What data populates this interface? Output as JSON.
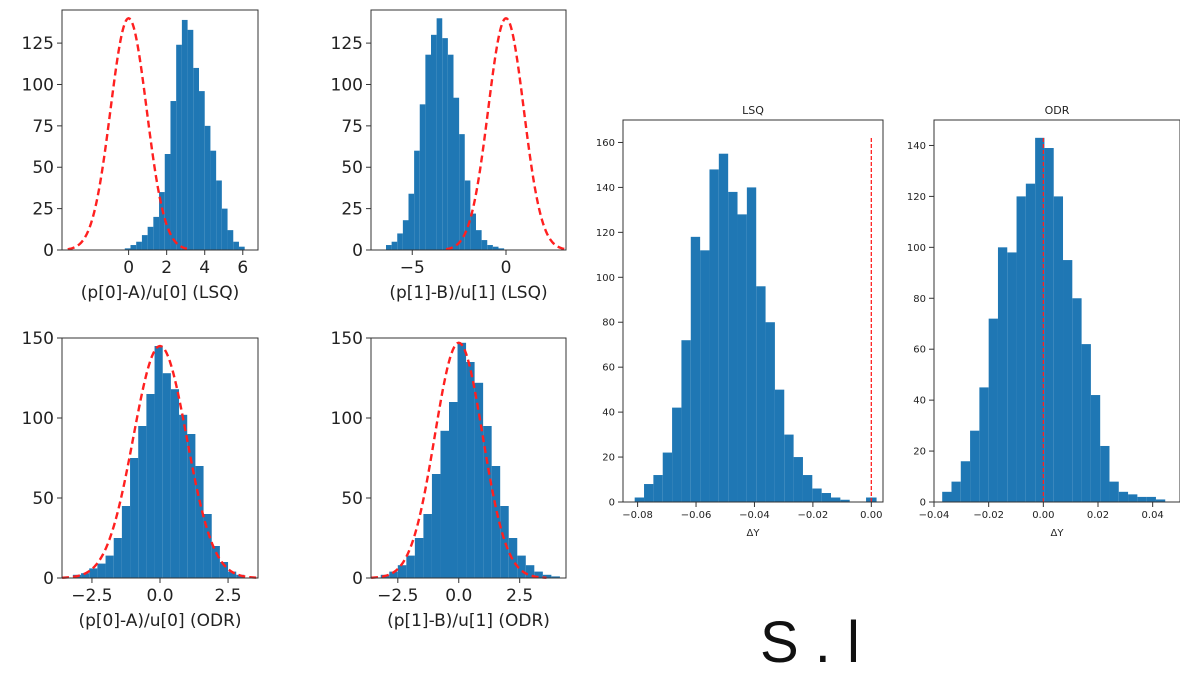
{
  "chart_data": [
    {
      "type": "histogram",
      "title": "",
      "xlabel": "(p[0]-A)/u[0] (LSQ)",
      "xlim": [
        -3.5,
        6.8
      ],
      "ylim": [
        0,
        145
      ],
      "xticks": [
        0,
        2,
        4,
        6
      ],
      "yticks": [
        0,
        25,
        50,
        75,
        100,
        125
      ],
      "bin_edges": [
        -0.2,
        0.1,
        0.4,
        0.7,
        1.0,
        1.3,
        1.6,
        1.9,
        2.2,
        2.5,
        2.8,
        3.1,
        3.4,
        3.7,
        4.0,
        4.3,
        4.6,
        4.9,
        5.2,
        5.5,
        5.8,
        6.1
      ],
      "counts": [
        1,
        3,
        5,
        9,
        14,
        20,
        35,
        58,
        90,
        124,
        139,
        133,
        110,
        96,
        75,
        60,
        42,
        25,
        12,
        5,
        2
      ],
      "bar_color": "#1f77b4",
      "reference_curve": {
        "style": "dashed",
        "color": "#ff2020",
        "center": 0.0,
        "sigma": 0.95,
        "peak": 140,
        "xrange": [
          -3.2,
          3.2
        ]
      }
    },
    {
      "type": "histogram",
      "title": "",
      "xlabel": "(p[1]-B)/u[1] (LSQ)",
      "xlim": [
        -7.2,
        3.2
      ],
      "ylim": [
        0,
        145
      ],
      "xticks": [
        -5,
        0
      ],
      "yticks": [
        0,
        25,
        50,
        75,
        100,
        125
      ],
      "bin_edges": [
        -6.4,
        -6.1,
        -5.8,
        -5.5,
        -5.2,
        -4.9,
        -4.6,
        -4.3,
        -4.0,
        -3.7,
        -3.4,
        -3.1,
        -2.8,
        -2.5,
        -2.2,
        -1.9,
        -1.6,
        -1.3,
        -1.0,
        -0.7,
        -0.4,
        -0.1
      ],
      "counts": [
        3,
        5,
        10,
        18,
        34,
        60,
        88,
        118,
        130,
        140,
        128,
        118,
        92,
        70,
        42,
        22,
        12,
        6,
        3,
        2,
        1
      ],
      "bar_color": "#1f77b4",
      "reference_curve": {
        "style": "dashed",
        "color": "#ff2020",
        "center": 0.0,
        "sigma": 0.95,
        "peak": 140,
        "xrange": [
          -3.2,
          3.2
        ]
      }
    },
    {
      "type": "histogram",
      "title": "",
      "xlabel": "(p[0]-A)/u[0] (ODR)",
      "xlim": [
        -3.6,
        3.6
      ],
      "ylim": [
        0,
        150
      ],
      "xticks": [
        -2.5,
        0.0,
        2.5
      ],
      "xtick_labels": [
        "−2.5",
        "0.0",
        "2.5"
      ],
      "yticks": [
        0,
        50,
        100,
        150
      ],
      "bin_edges": [
        -3.2,
        -2.9,
        -2.6,
        -2.3,
        -2.0,
        -1.7,
        -1.4,
        -1.1,
        -0.8,
        -0.5,
        -0.2,
        0.1,
        0.4,
        0.7,
        1.0,
        1.3,
        1.6,
        1.9,
        2.2,
        2.5,
        2.8,
        3.1
      ],
      "counts": [
        2,
        3,
        6,
        9,
        14,
        25,
        45,
        75,
        95,
        115,
        145,
        128,
        118,
        102,
        90,
        70,
        40,
        20,
        10,
        4,
        2
      ],
      "bar_color": "#1f77b4",
      "reference_curve": {
        "style": "dashed",
        "color": "#ff2020",
        "center": 0.0,
        "sigma": 0.98,
        "peak": 145,
        "xrange": [
          -3.6,
          3.6
        ]
      }
    },
    {
      "type": "histogram",
      "title": "",
      "xlabel": "(p[1]-B)/u[1] (ODR)",
      "xlim": [
        -3.6,
        4.4
      ],
      "ylim": [
        0,
        150
      ],
      "xticks": [
        -2.5,
        0.0,
        2.5
      ],
      "xtick_labels": [
        "−2.5",
        "0.0",
        "2.5"
      ],
      "yticks": [
        0,
        50,
        100,
        150
      ],
      "bin_edges": [
        -3.2,
        -2.85,
        -2.5,
        -2.15,
        -1.8,
        -1.45,
        -1.1,
        -0.75,
        -0.4,
        -0.05,
        0.3,
        0.65,
        1.0,
        1.35,
        1.7,
        2.05,
        2.4,
        2.75,
        3.1,
        3.45,
        3.8,
        4.15
      ],
      "counts": [
        2,
        4,
        8,
        14,
        25,
        40,
        65,
        92,
        110,
        147,
        135,
        122,
        95,
        70,
        45,
        25,
        14,
        8,
        4,
        2,
        1
      ],
      "bar_color": "#1f77b4",
      "reference_curve": {
        "style": "dashed",
        "color": "#ff2020",
        "center": 0.0,
        "sigma": 0.98,
        "peak": 147,
        "xrange": [
          -3.6,
          3.6
        ]
      }
    },
    {
      "type": "histogram",
      "title": "LSQ",
      "xlabel": "ΔY",
      "xlim": [
        -0.085,
        0.004
      ],
      "ylim": [
        0,
        170
      ],
      "xticks": [
        -0.08,
        -0.06,
        -0.04,
        -0.02,
        0.0
      ],
      "xtick_labels": [
        "−0.08",
        "−0.06",
        "−0.04",
        "−0.02",
        "0.00"
      ],
      "yticks": [
        0,
        20,
        40,
        60,
        80,
        100,
        120,
        140,
        160
      ],
      "bin_edges": [
        -0.081,
        -0.0778,
        -0.0746,
        -0.0714,
        -0.0682,
        -0.065,
        -0.0618,
        -0.0586,
        -0.0554,
        -0.0522,
        -0.049,
        -0.0458,
        -0.0426,
        -0.0394,
        -0.0362,
        -0.033,
        -0.0298,
        -0.0266,
        -0.0234,
        -0.0202,
        -0.017,
        -0.0138,
        -0.0106,
        -0.0074
      ],
      "counts": [
        2,
        8,
        12,
        22,
        42,
        72,
        118,
        112,
        148,
        155,
        138,
        128,
        140,
        96,
        80,
        50,
        30,
        20,
        12,
        6,
        4,
        2,
        1
      ],
      "extra_bars": [
        {
          "x0": -0.0018,
          "x1": 0.0018,
          "count": 2
        }
      ],
      "bar_color": "#1f77b4",
      "reference_line": {
        "x": 0.0,
        "style": "dashed",
        "color": "#ff2020"
      }
    },
    {
      "type": "histogram",
      "title": "ODR",
      "xlabel": "ΔY",
      "xlim": [
        -0.04,
        0.05
      ],
      "ylim": [
        0,
        150
      ],
      "xticks": [
        -0.04,
        -0.02,
        0.0,
        0.02,
        0.04
      ],
      "xtick_labels": [
        "−0.04",
        "−0.02",
        "0.00",
        "0.02",
        "0.04"
      ],
      "yticks": [
        0,
        20,
        40,
        60,
        80,
        100,
        120,
        140
      ],
      "bin_edges": [
        -0.037,
        -0.0336,
        -0.0302,
        -0.0268,
        -0.0234,
        -0.02,
        -0.0166,
        -0.0132,
        -0.0098,
        -0.0064,
        -0.003,
        0.0004,
        0.0038,
        0.0072,
        0.0106,
        0.014,
        0.0174,
        0.0208,
        0.0242,
        0.0276,
        0.031,
        0.0344,
        0.0378,
        0.0412,
        0.0446
      ],
      "counts": [
        4,
        8,
        16,
        28,
        45,
        72,
        100,
        98,
        120,
        125,
        143,
        139,
        120,
        95,
        80,
        62,
        42,
        22,
        8,
        4,
        3,
        2,
        2,
        1
      ],
      "bar_color": "#1f77b4",
      "reference_line": {
        "x": 0.0,
        "style": "dashed",
        "color": "#ff2020"
      }
    }
  ],
  "stray_text": "S   .  l  "
}
